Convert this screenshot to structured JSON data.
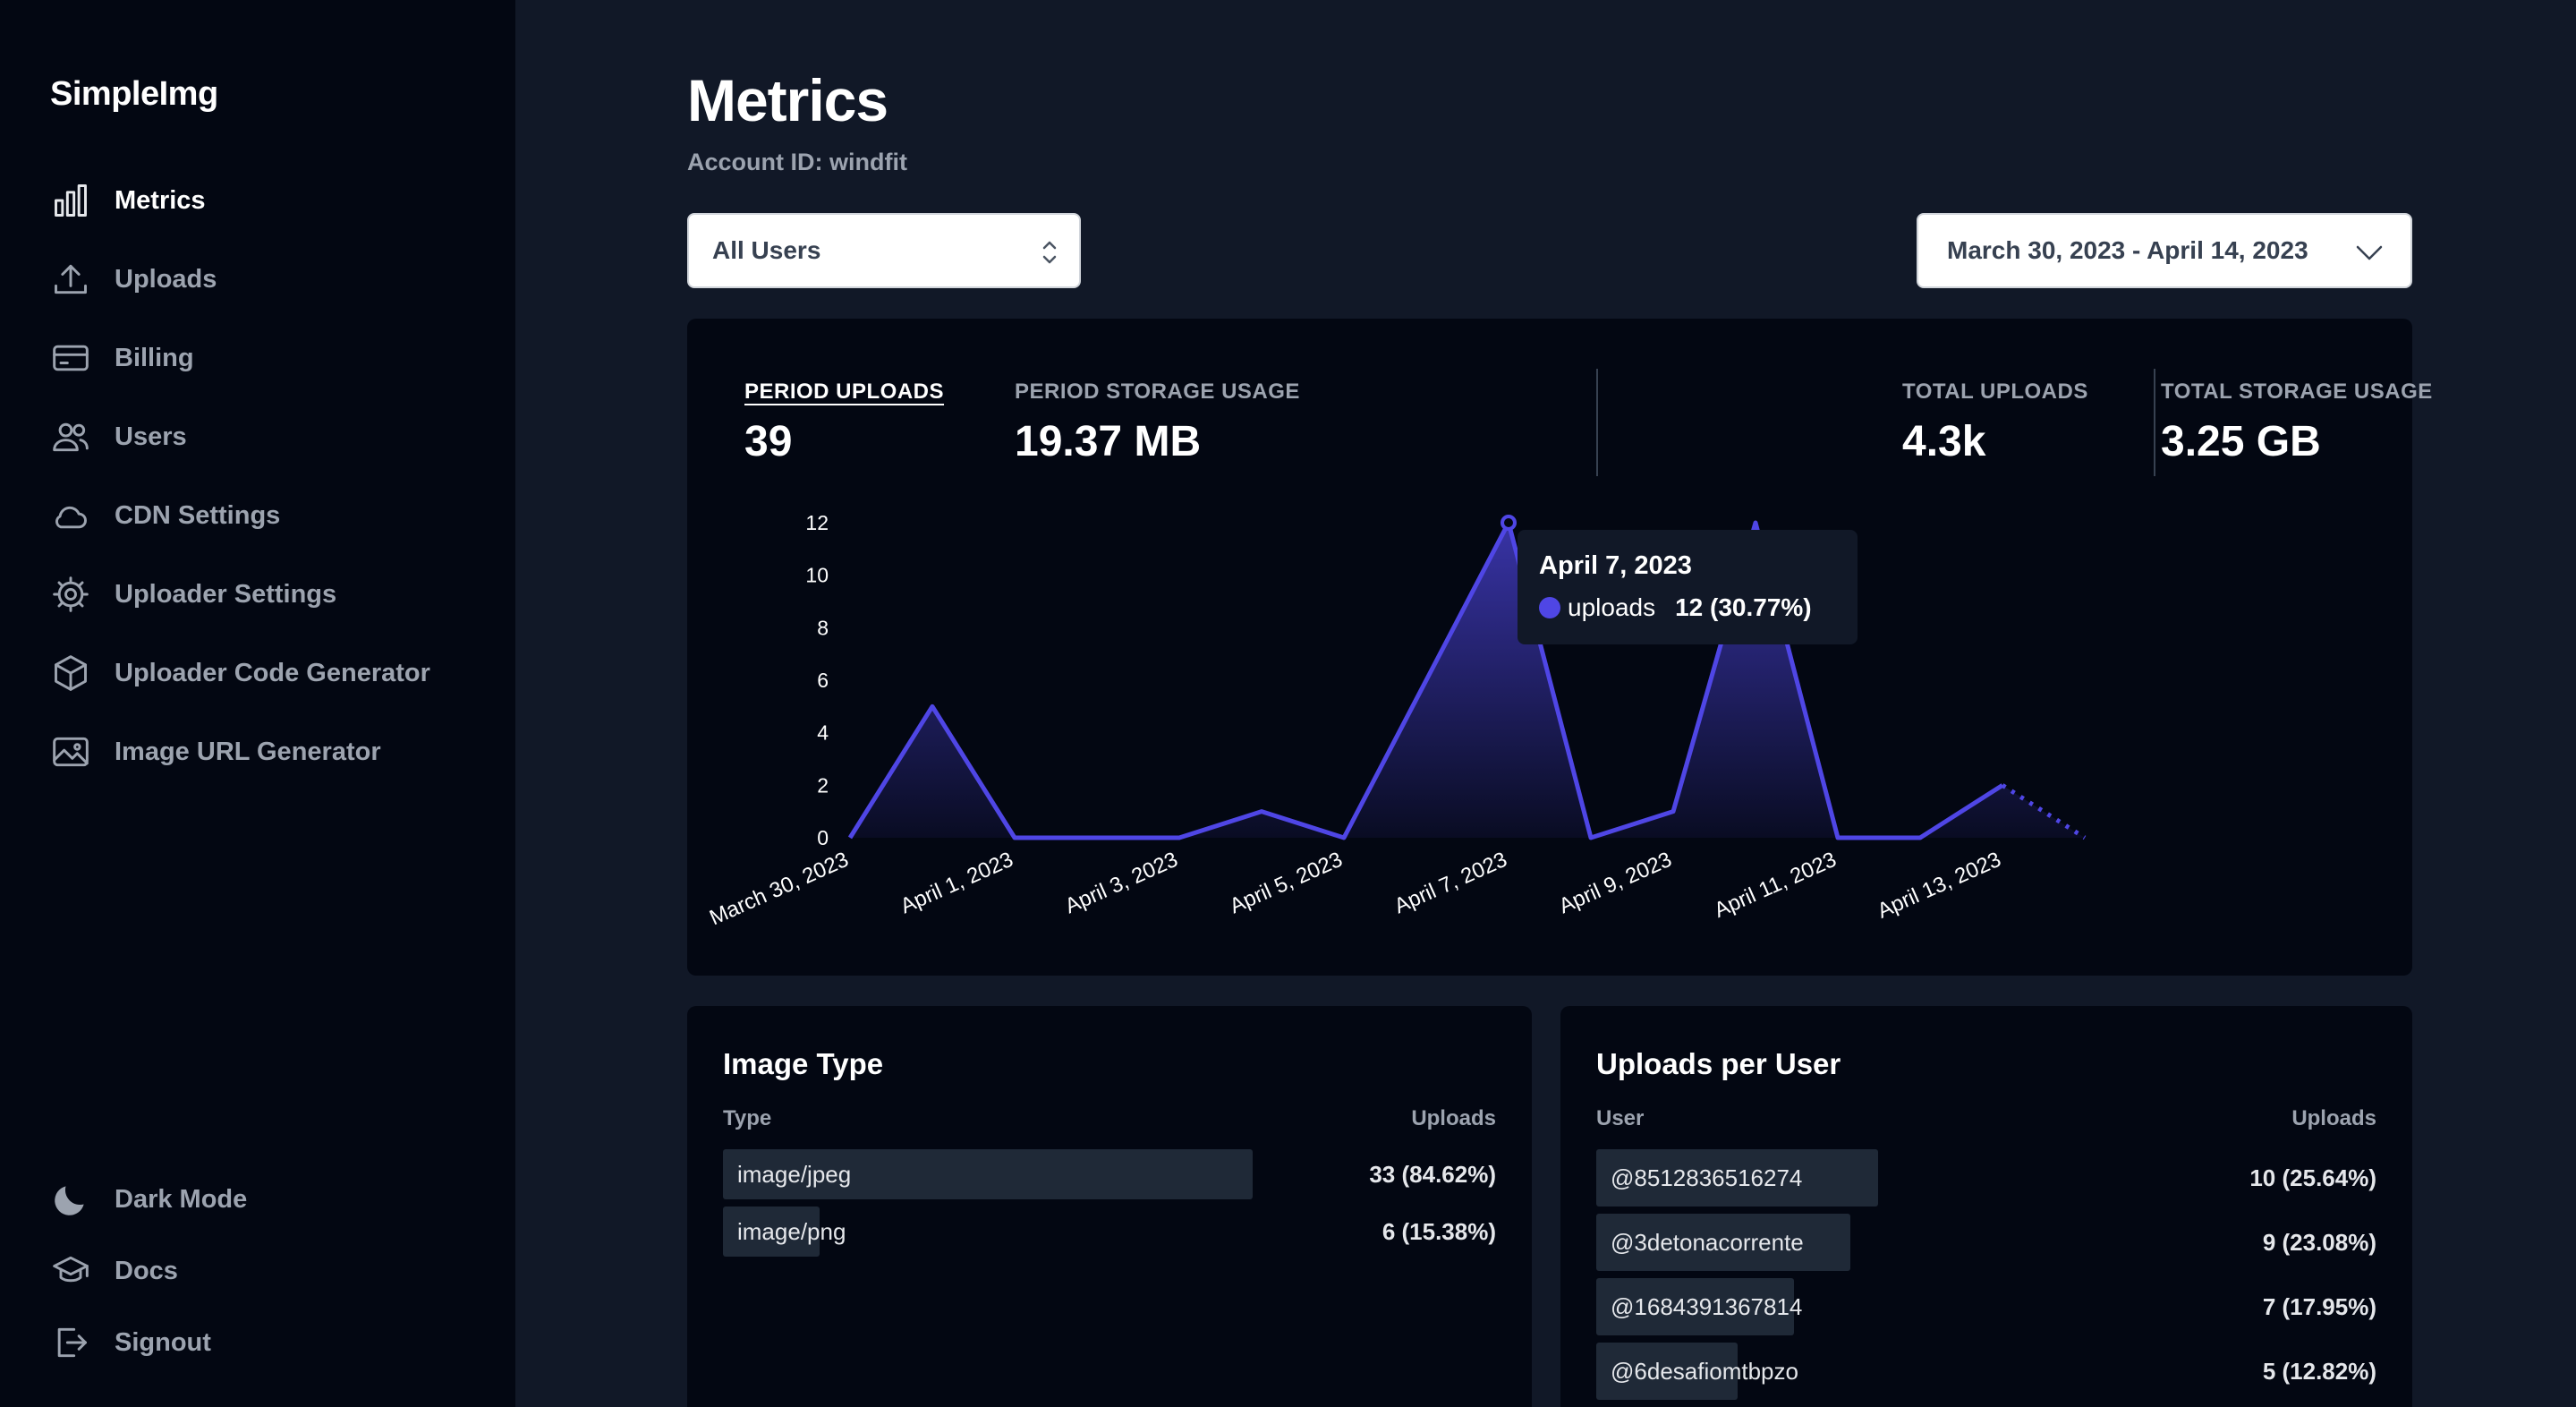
{
  "brand": "SimpleImg",
  "sidebar": {
    "items": [
      {
        "label": "Metrics",
        "icon": "bar-chart-icon",
        "active": true
      },
      {
        "label": "Uploads",
        "icon": "upload-icon"
      },
      {
        "label": "Billing",
        "icon": "credit-card-icon"
      },
      {
        "label": "Users",
        "icon": "users-icon"
      },
      {
        "label": "CDN Settings",
        "icon": "cloud-icon"
      },
      {
        "label": "Uploader Settings",
        "icon": "gear-icon"
      },
      {
        "label": "Uploader Code Generator",
        "icon": "cube-icon"
      },
      {
        "label": "Image URL Generator",
        "icon": "image-icon"
      }
    ],
    "bottom": [
      {
        "label": "Dark Mode",
        "icon": "moon-icon"
      },
      {
        "label": "Docs",
        "icon": "graduation-cap-icon"
      },
      {
        "label": "Signout",
        "icon": "sign-out-icon"
      }
    ]
  },
  "page": {
    "title": "Metrics",
    "account_id": "Account ID: windfit"
  },
  "filters": {
    "users_select": "All Users",
    "date_range": "March 30, 2023 - April 14, 2023"
  },
  "stats": {
    "period_uploads_label": "PERIOD UPLOADS",
    "period_uploads_value": "39",
    "period_storage_label": "PERIOD STORAGE USAGE",
    "period_storage_value": "19.37 MB",
    "total_uploads_label": "TOTAL UPLOADS",
    "total_uploads_value": "4.3k",
    "total_storage_label": "TOTAL STORAGE USAGE",
    "total_storage_value": "3.25 GB"
  },
  "tooltip": {
    "date": "April 7, 2023",
    "series": "uploads",
    "value": "12 (30.77%)"
  },
  "chart_data": {
    "type": "area",
    "title": "",
    "xlabel": "",
    "ylabel": "",
    "x": [
      "March 30, 2023",
      "March 31, 2023",
      "April 1, 2023",
      "April 2, 2023",
      "April 3, 2023",
      "April 4, 2023",
      "April 5, 2023",
      "April 6, 2023",
      "April 7, 2023",
      "April 8, 2023",
      "April 9, 2023",
      "April 10, 2023",
      "April 11, 2023",
      "April 12, 2023",
      "April 13, 2023",
      "April 14, 2023"
    ],
    "x_tick_labels": [
      "March 30, 2023",
      "April 1, 2023",
      "April 3, 2023",
      "April 5, 2023",
      "April 7, 2023",
      "April 9, 2023",
      "April 11, 2023",
      "April 13, 2023"
    ],
    "series": [
      {
        "name": "uploads",
        "values": [
          0,
          5,
          0,
          0,
          0,
          1,
          0,
          6,
          12,
          0,
          1,
          12,
          0,
          0,
          2,
          0
        ]
      }
    ],
    "y_ticks": [
      0,
      2,
      4,
      6,
      8,
      10,
      12
    ],
    "ylim": [
      0,
      12
    ],
    "color": "#4f46e5",
    "last_segment_dotted": true
  },
  "image_type": {
    "title": "Image Type",
    "col_type": "Type",
    "col_uploads": "Uploads",
    "rows": [
      {
        "name": "image/jpeg",
        "value": "33 (84.62%)",
        "fraction": 0.8462
      },
      {
        "name": "image/png",
        "value": "6 (15.38%)",
        "fraction": 0.1538
      }
    ]
  },
  "uploads_per_user": {
    "title": "Uploads per User",
    "col_user": "User",
    "col_uploads": "Uploads",
    "rows": [
      {
        "name": "@8512836516274",
        "value": "10 (25.64%)",
        "fraction": 0.2564
      },
      {
        "name": "@3detonacorrente",
        "value": "9 (23.08%)",
        "fraction": 0.2308
      },
      {
        "name": "@1684391367814",
        "value": "7 (17.95%)",
        "fraction": 0.1795
      },
      {
        "name": "@6desafiomtbpzo",
        "value": "5 (12.82%)",
        "fraction": 0.1282
      }
    ]
  }
}
